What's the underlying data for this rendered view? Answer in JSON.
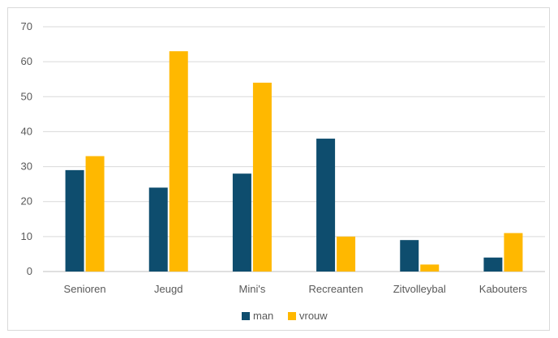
{
  "chart_data": {
    "type": "bar",
    "categories": [
      "Senioren",
      "Jeugd",
      "Mini's",
      "Recreanten",
      "Zitvolleybal",
      "Kabouters"
    ],
    "series": [
      {
        "name": "man",
        "values": [
          29,
          24,
          28,
          38,
          9,
          4
        ],
        "color": "#0e4d6e"
      },
      {
        "name": "vrouw",
        "values": [
          33,
          63,
          54,
          10,
          2,
          11
        ],
        "color": "#ffb800"
      }
    ],
    "ylim": [
      0,
      70
    ],
    "yticks": [
      0,
      10,
      20,
      30,
      40,
      50,
      60,
      70
    ],
    "grid": true,
    "legend_position": "bottom",
    "gridline_color": "#d9d9d9",
    "axis_color": "#bfbfbf"
  }
}
